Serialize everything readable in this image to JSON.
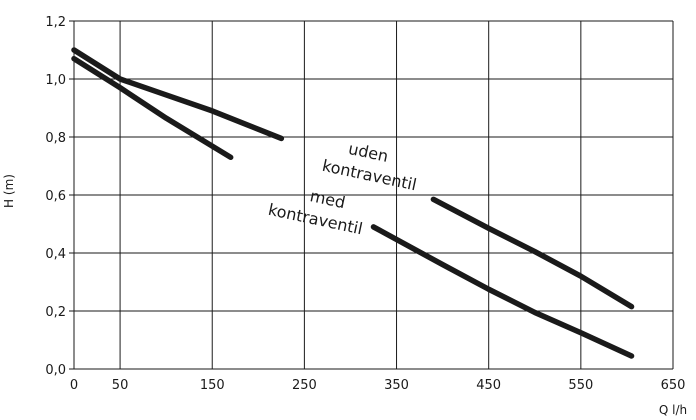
{
  "chart_data": {
    "type": "line",
    "title": "",
    "xlabel": "Q l/h",
    "ylabel": "H (m)",
    "xlim": [
      0,
      650
    ],
    "ylim": [
      0,
      1.2
    ],
    "x_ticks": [
      {
        "value": 0,
        "label": "0"
      },
      {
        "value": 50,
        "label": "50"
      },
      {
        "value": 150,
        "label": "150"
      },
      {
        "value": 250,
        "label": "250"
      },
      {
        "value": 350,
        "label": "350"
      },
      {
        "value": 450,
        "label": "450"
      },
      {
        "value": 550,
        "label": "550"
      },
      {
        "value": 650,
        "label": "650"
      }
    ],
    "y_ticks": [
      {
        "value": 0,
        "label": "0,0"
      },
      {
        "value": 0.2,
        "label": "0,2"
      },
      {
        "value": 0.4,
        "label": "0,4"
      },
      {
        "value": 0.6,
        "label": "0,6"
      },
      {
        "value": 0.8,
        "label": "0,8"
      },
      {
        "value": 1.0,
        "label": "1,0"
      },
      {
        "value": 1.2,
        "label": "1,2"
      }
    ],
    "grid": true,
    "series": [
      {
        "name": "uden kontraventil",
        "label_lines": [
          "uden",
          "kontraventil"
        ],
        "color": "#1a1a1a",
        "segments": [
          [
            [
              0,
              1.1
            ],
            [
              50,
              1.0
            ],
            [
              100,
              0.945
            ],
            [
              150,
              0.89
            ],
            [
              225,
              0.795
            ]
          ],
          [
            [
              390,
              0.585
            ],
            [
              450,
              0.485
            ],
            [
              500,
              0.405
            ],
            [
              550,
              0.32
            ],
            [
              605,
              0.215
            ]
          ]
        ]
      },
      {
        "name": "med kontraventil",
        "label_lines": [
          "med",
          "kontraventil"
        ],
        "color": "#1a1a1a",
        "segments": [
          [
            [
              0,
              1.07
            ],
            [
              50,
              0.97
            ],
            [
              100,
              0.865
            ],
            [
              170,
              0.73
            ]
          ],
          [
            [
              325,
              0.49
            ],
            [
              400,
              0.36
            ],
            [
              450,
              0.275
            ],
            [
              500,
              0.195
            ],
            [
              550,
              0.125
            ],
            [
              605,
              0.045
            ]
          ]
        ]
      }
    ]
  }
}
